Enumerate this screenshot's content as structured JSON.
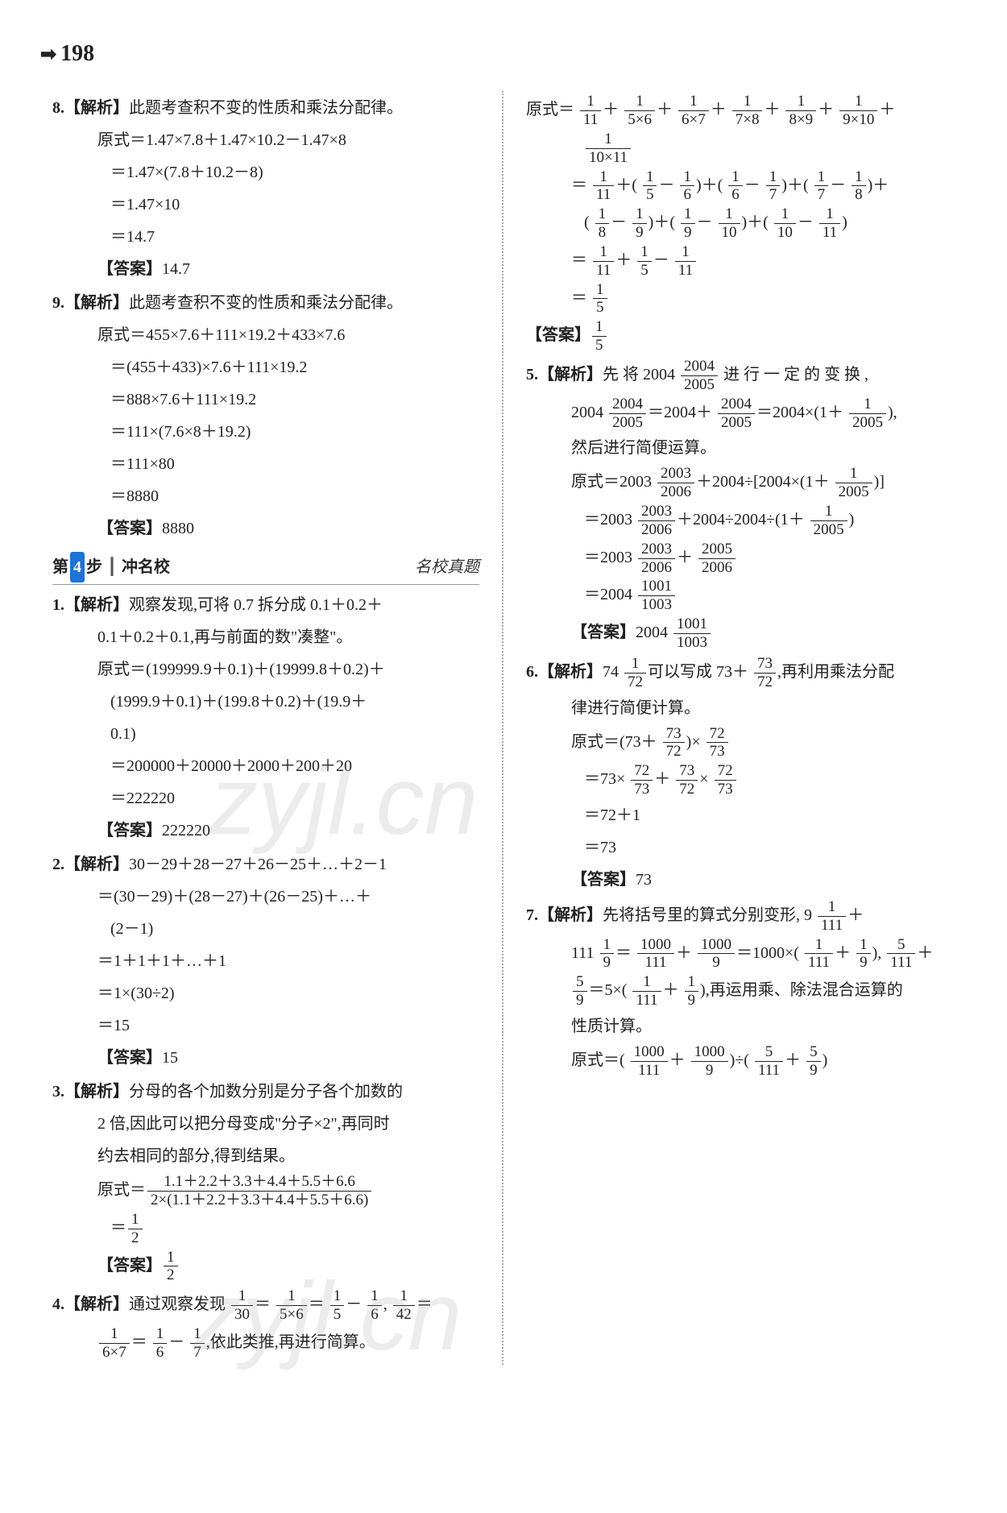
{
  "header": {
    "arrow": "➡",
    "page_num": "198"
  },
  "watermark": "zyjl.cn",
  "left": {
    "q8": {
      "head_num": "8.",
      "head_label": "【解析】",
      "head_text": "此题考查积不变的性质和乘法分配律。",
      "l1": "原式＝1.47×7.8＋1.47×10.2－1.47×8",
      "l2": "＝1.47×(7.8＋10.2－8)",
      "l3": "＝1.47×10",
      "l4": "＝14.7",
      "ans_label": "【答案】",
      "ans": "14.7"
    },
    "q9": {
      "head_num": "9.",
      "head_label": "【解析】",
      "head_text": "此题考查积不变的性质和乘法分配律。",
      "l1": "原式＝455×7.6＋111×19.2＋433×7.6",
      "l2": "＝(455＋433)×7.6＋111×19.2",
      "l3": "＝888×7.6＋111×19.2",
      "l4": "＝111×(7.6×8＋19.2)",
      "l5": "＝111×80",
      "l6": "＝8880",
      "ans_label": "【答案】",
      "ans": "8880"
    },
    "section": {
      "step_prefix": "第",
      "step_num": "4",
      "step_suffix": "步",
      "mid": "┃",
      "title": "冲名校",
      "right": "名校真题"
    },
    "q1": {
      "head_num": "1.",
      "head_label": "【解析】",
      "head_text_a": "观察发现,可将 0.7 拆分成 0.1＋0.2＋",
      "head_text_b": "0.1＋0.2＋0.1,再与前面的数\"凑整\"。",
      "l1": "原式＝(199999.9＋0.1)＋(19999.8＋0.2)＋",
      "l2": "(1999.9＋0.1)＋(199.8＋0.2)＋(19.9＋",
      "l3": "0.1)",
      "l4": "＝200000＋20000＋2000＋200＋20",
      "l5": "＝222220",
      "ans_label": "【答案】",
      "ans": "222220"
    },
    "q2": {
      "head_num": "2.",
      "head_label": "【解析】",
      "head_text": "30－29＋28－27＋26－25＋…＋2－1",
      "l1": "＝(30－29)＋(28－27)＋(26－25)＋…＋",
      "l2": "(2－1)",
      "l3": "＝1＋1＋1＋…＋1",
      "l4": "＝1×(30÷2)",
      "l5": "＝15",
      "ans_label": "【答案】",
      "ans": "15"
    },
    "q3": {
      "head_num": "3.",
      "head_label": "【解析】",
      "head_text_a": "分母的各个加数分别是分子各个加数的",
      "head_text_b": "2 倍,因此可以把分母变成\"分子×2\",再同时",
      "head_text_c": "约去相同的部分,得到结果。",
      "l1_pre": "原式＝",
      "l1_num": "1.1＋2.2＋3.3＋4.4＋5.5＋6.6",
      "l1_den": "2×(1.1＋2.2＋3.3＋4.4＋5.5＋6.6)",
      "l2_pre": "＝",
      "ans_label": "【答案】"
    },
    "q4": {
      "head_num": "4.",
      "head_label": "【解析】",
      "head_text_a": "通过观察发现",
      "head_text_b": "＝",
      "head_text_c": "＝",
      "head_text_d": "－",
      "head_text_e": ",",
      "head_text_f": "＝",
      "l2_a": "＝",
      "l2_b": "－",
      "l2_c": ",依此类推,再进行简算。"
    }
  },
  "right": {
    "cont": {
      "l1_pre": "原式＝",
      "plus": "＋",
      "l3_pre": "＝",
      "l3_a": "＋(",
      "l3_b": "－",
      "l3_c": ")＋(",
      "l3_d": "－",
      "l3_e": ")＋(",
      "l3_f": "－",
      "l3_g": ")＋",
      "l4_a": "(",
      "l4_b": "－",
      "l4_c": ")＋(",
      "l4_d": "－",
      "l4_e": ")＋(",
      "l4_f": "－",
      "l4_g": ")",
      "l5_pre": "＝",
      "l5_mid": "＋",
      "l5_end": "－",
      "l6_pre": "＝",
      "ans_label": "【答案】"
    },
    "q5": {
      "head_num": "5.",
      "head_label": "【解析】",
      "t1": "先 将 2004",
      "t2": "进 行 一 定 的 变 换 ,",
      "l2a": "2004",
      "l2b": "＝2004＋",
      "l2c": "＝2004×(1＋",
      "l2d": "),",
      "l3": "然后进行简便运算。",
      "e1_pre": "原式＝2003",
      "e1_mid": "＋2004÷[2004×(1＋",
      "e1_end": ")]",
      "e2_pre": "＝2003",
      "e2_mid": "＋2004÷2004÷(1＋",
      "e2_end": ")",
      "e3_pre": "＝2003",
      "e3_mid": "＋",
      "e4_pre": "＝2004",
      "ans_label": "【答案】",
      "ans_pre": "2004"
    },
    "q6": {
      "head_num": "6.",
      "head_label": "【解析】",
      "t1": "74",
      "t2": "可以写成 73＋",
      "t3": ",再利用乘法分配",
      "t4": "律进行简便计算。",
      "e1_pre": "原式＝(73＋",
      "e1_mid": ")×",
      "e2_pre": "＝73×",
      "e2_mid": "＋",
      "e2_mid2": "×",
      "e3": "＝72＋1",
      "e4": "＝73",
      "ans_label": "【答案】",
      "ans": "73"
    },
    "q7": {
      "head_num": "7.",
      "head_label": "【解析】",
      "t1": "先将括号里的算式分别变形, 9",
      "t2": "＋",
      "l2a": "111",
      "l2b": "＝",
      "l2c": "＋",
      "l2d": "＝1000×(",
      "l2e": "＋",
      "l2f": "),",
      "l2g": "＋",
      "l3a": "＝5×(",
      "l3b": "＋",
      "l3c": "),再运用乘、除法混合运算的",
      "l4": "性质计算。",
      "e1_pre": "原式＝(",
      "e1_mid": "＋",
      "e1_mid2": ")÷(",
      "e1_mid3": "＋",
      "e1_end": ")"
    }
  }
}
